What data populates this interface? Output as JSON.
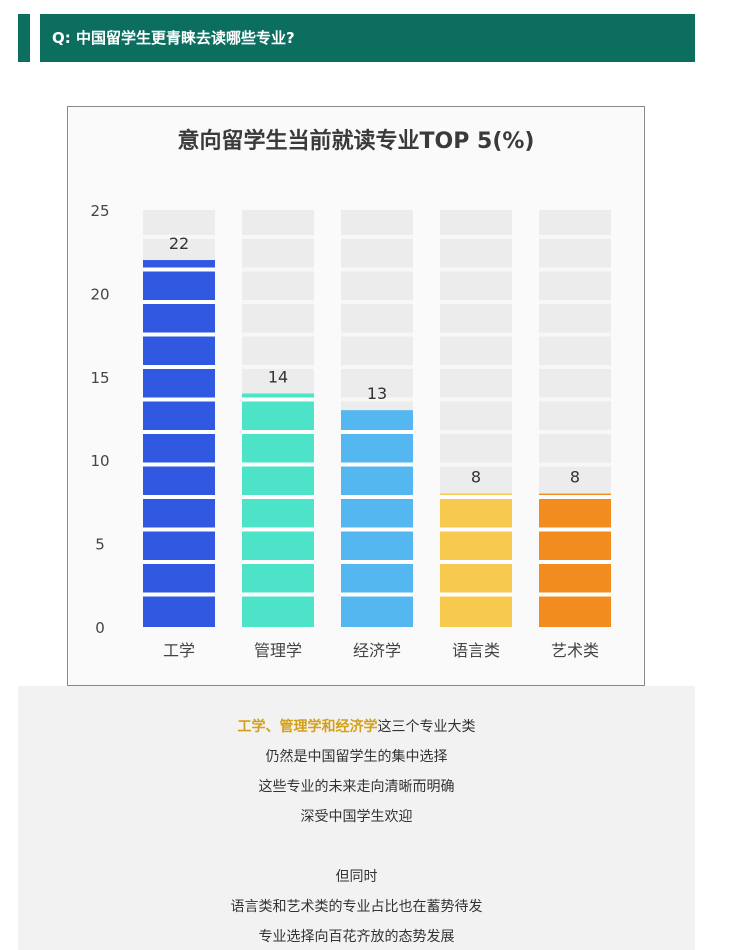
{
  "header": {
    "question": "Q: 中国留学生更青睐去读哪些专业?"
  },
  "chart_data": {
    "type": "bar",
    "title": "意向留学生当前就读专业TOP 5(%)",
    "categories": [
      "工学",
      "管理学",
      "经济学",
      "语言类",
      "艺术类"
    ],
    "values": [
      22,
      14,
      13,
      8,
      8
    ],
    "ylim": [
      0,
      25
    ],
    "yticks": [
      0,
      5,
      10,
      15,
      20,
      25
    ],
    "colors": [
      "#3158e0",
      "#4de3c8",
      "#55b7f0",
      "#f7c94e",
      "#f28c1e"
    ],
    "background_track_color": "#ececec",
    "grid": false,
    "xlabel": "",
    "ylabel": ""
  },
  "caption": {
    "line1_highlight": "工学、管理学和经济学",
    "line1_rest": "这三个专业大类",
    "line2": "仍然是中国留学生的集中选择",
    "line3": "这些专业的未来走向清晰而明确",
    "line4": "深受中国学生欢迎",
    "line5": "但同时",
    "line6": "语言类和艺术类的专业占比也在蓄势待发",
    "line7": "专业选择向百花齐放的态势发展"
  }
}
